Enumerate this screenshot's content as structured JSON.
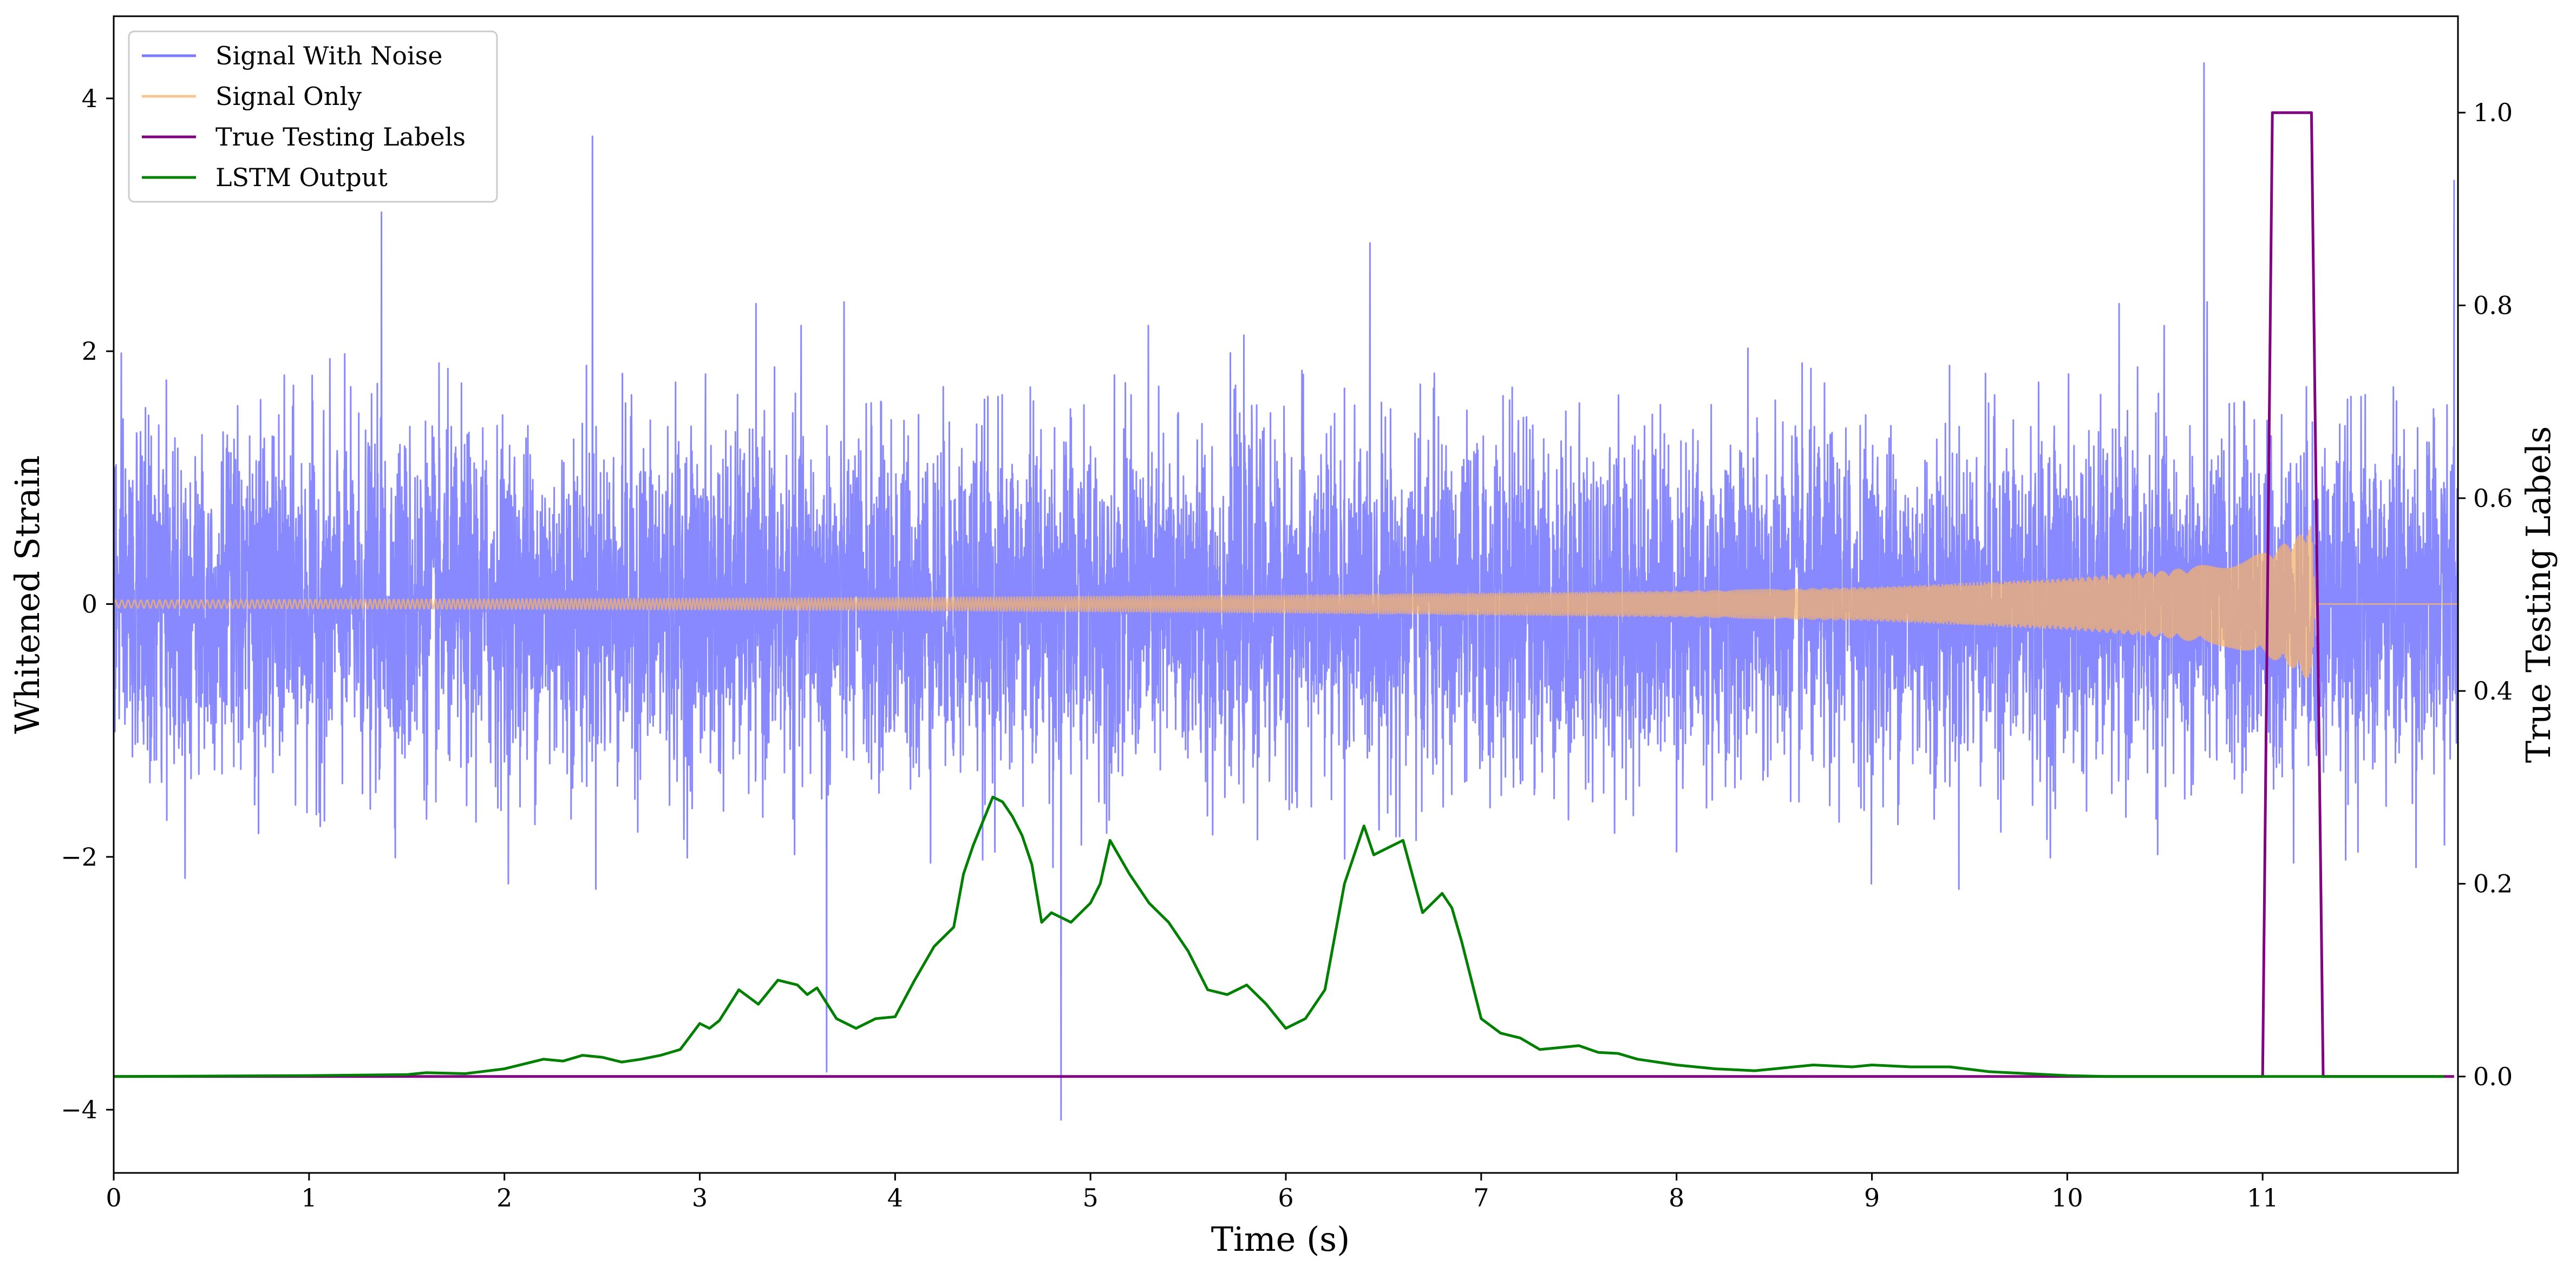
{
  "chart_data": {
    "type": "line",
    "title": "",
    "xlabel": "Time (s)",
    "ylabel_left": "Whitened Strain",
    "ylabel_right": "True Testing Labels",
    "xlim": [
      0,
      12
    ],
    "ylim_left": [
      -4.5,
      4.65
    ],
    "ylim_right": [
      -0.1,
      1.1
    ],
    "xticks": [
      "0",
      "1",
      "2",
      "3",
      "4",
      "5",
      "6",
      "7",
      "8",
      "9",
      "10",
      "11"
    ],
    "xtick_values": [
      0,
      1,
      2,
      3,
      4,
      5,
      6,
      7,
      8,
      9,
      10,
      11
    ],
    "yticks_left": [
      "−4",
      "−2",
      "0",
      "2",
      "4"
    ],
    "ytick_values_left": [
      -4,
      -2,
      0,
      2,
      4
    ],
    "yticks_right": [
      "0.0",
      "0.2",
      "0.4",
      "0.6",
      "0.8",
      "1.0"
    ],
    "ytick_values_right": [
      0.0,
      0.2,
      0.4,
      0.6,
      0.8,
      1.0
    ],
    "grid": false,
    "legend_position": "top-left",
    "series": [
      {
        "name": "Signal With Noise",
        "axis": "left",
        "color": "#7b7bff",
        "description": "Gaussian-like whitened noise, mostly within ±1.5 with spikes up to about ±4",
        "envelope_typical": 1.4,
        "peak_max": 4.28,
        "peak_min": -4.08,
        "notable_spikes": [
          [
            1.37,
            3.1
          ],
          [
            2.45,
            3.7
          ],
          [
            4.85,
            -4.08
          ],
          [
            10.7,
            4.28
          ],
          [
            3.65,
            -3.7
          ],
          [
            11.98,
            3.35
          ]
        ]
      },
      {
        "name": "Signal Only",
        "axis": "left",
        "color": "#f5b36b",
        "description": "Chirp signal with slowly growing amplitude ending near t = 11.27 s",
        "amplitude_points": [
          [
            0,
            0.03
          ],
          [
            4,
            0.05
          ],
          [
            6,
            0.07
          ],
          [
            8,
            0.1
          ],
          [
            9,
            0.13
          ],
          [
            10,
            0.2
          ],
          [
            10.5,
            0.26
          ],
          [
            10.8,
            0.33
          ],
          [
            11.0,
            0.4
          ],
          [
            11.15,
            0.5
          ],
          [
            11.25,
            0.62
          ],
          [
            11.27,
            0.0
          ],
          [
            12,
            0.0
          ]
        ]
      },
      {
        "name": "True Testing Labels",
        "axis": "right",
        "color": "#800080",
        "x": [
          0,
          11.0,
          11.05,
          11.25,
          11.31,
          11.98
        ],
        "values": [
          0,
          0,
          1,
          1,
          0,
          0
        ]
      },
      {
        "name": "LSTM Output",
        "axis": "right",
        "color": "#008000",
        "x": [
          0,
          1,
          1.5,
          1.6,
          1.8,
          2.0,
          2.1,
          2.2,
          2.3,
          2.4,
          2.5,
          2.6,
          2.7,
          2.8,
          2.9,
          3.0,
          3.05,
          3.1,
          3.2,
          3.3,
          3.4,
          3.5,
          3.55,
          3.6,
          3.7,
          3.8,
          3.9,
          4.0,
          4.1,
          4.2,
          4.3,
          4.35,
          4.4,
          4.5,
          4.55,
          4.6,
          4.65,
          4.7,
          4.75,
          4.8,
          4.9,
          5.0,
          5.05,
          5.1,
          5.2,
          5.3,
          5.4,
          5.5,
          5.6,
          5.7,
          5.8,
          5.9,
          6.0,
          6.1,
          6.2,
          6.3,
          6.4,
          6.45,
          6.5,
          6.6,
          6.7,
          6.8,
          6.85,
          6.9,
          7.0,
          7.1,
          7.2,
          7.3,
          7.4,
          7.5,
          7.6,
          7.7,
          7.8,
          7.9,
          8.0,
          8.2,
          8.4,
          8.5,
          8.7,
          8.9,
          9.0,
          9.2,
          9.4,
          9.6,
          9.8,
          10.0,
          10.2,
          10.4,
          11.0,
          11.93
        ],
        "values": [
          0,
          0.001,
          0.002,
          0.004,
          0.003,
          0.008,
          0.013,
          0.018,
          0.016,
          0.022,
          0.02,
          0.015,
          0.018,
          0.022,
          0.028,
          0.055,
          0.05,
          0.058,
          0.09,
          0.075,
          0.1,
          0.095,
          0.085,
          0.092,
          0.06,
          0.05,
          0.06,
          0.062,
          0.1,
          0.135,
          0.155,
          0.21,
          0.24,
          0.29,
          0.285,
          0.27,
          0.25,
          0.22,
          0.16,
          0.17,
          0.16,
          0.18,
          0.2,
          0.245,
          0.21,
          0.18,
          0.16,
          0.13,
          0.09,
          0.085,
          0.095,
          0.075,
          0.05,
          0.06,
          0.09,
          0.2,
          0.26,
          0.23,
          0.235,
          0.245,
          0.17,
          0.19,
          0.175,
          0.14,
          0.06,
          0.045,
          0.04,
          0.028,
          0.03,
          0.032,
          0.025,
          0.024,
          0.018,
          0.015,
          0.012,
          0.008,
          0.006,
          0.008,
          0.012,
          0.01,
          0.012,
          0.01,
          0.01,
          0.005,
          0.003,
          0.001,
          0.0,
          0.0,
          0.0,
          0.0
        ]
      }
    ]
  }
}
